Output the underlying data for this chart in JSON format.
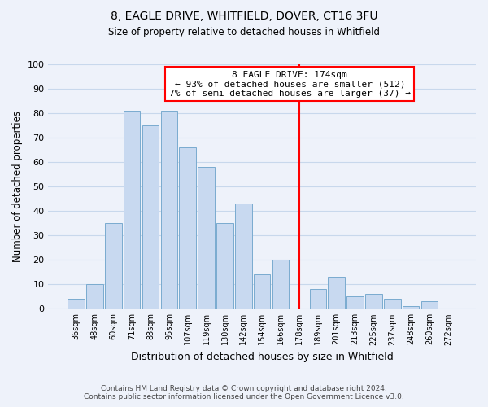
{
  "title": "8, EAGLE DRIVE, WHITFIELD, DOVER, CT16 3FU",
  "subtitle": "Size of property relative to detached houses in Whitfield",
  "xlabel": "Distribution of detached houses by size in Whitfield",
  "ylabel": "Number of detached properties",
  "footnote1": "Contains HM Land Registry data © Crown copyright and database right 2024.",
  "footnote2": "Contains public sector information licensed under the Open Government Licence v3.0.",
  "bin_labels": [
    "36sqm",
    "48sqm",
    "60sqm",
    "71sqm",
    "83sqm",
    "95sqm",
    "107sqm",
    "119sqm",
    "130sqm",
    "142sqm",
    "154sqm",
    "166sqm",
    "178sqm",
    "189sqm",
    "201sqm",
    "213sqm",
    "225sqm",
    "237sqm",
    "248sqm",
    "260sqm",
    "272sqm"
  ],
  "bin_counts": [
    4,
    10,
    35,
    81,
    75,
    81,
    66,
    58,
    35,
    43,
    14,
    20,
    0,
    8,
    13,
    5,
    6,
    4,
    1,
    3,
    0
  ],
  "bar_color": "#c8d9f0",
  "bar_edge_color": "#7aabcf",
  "vline_color": "red",
  "vline_index": 12,
  "annotation_line1": "8 EAGLE DRIVE: 174sqm",
  "annotation_line2": "← 93% of detached houses are smaller (512)",
  "annotation_line3": "7% of semi-detached houses are larger (37) →",
  "annotation_box_color": "white",
  "annotation_box_edge_color": "red",
  "ylim": [
    0,
    100
  ],
  "yticks": [
    0,
    10,
    20,
    30,
    40,
    50,
    60,
    70,
    80,
    90,
    100
  ],
  "grid_color": "#c8d8ec",
  "bg_color": "#eef2fa"
}
